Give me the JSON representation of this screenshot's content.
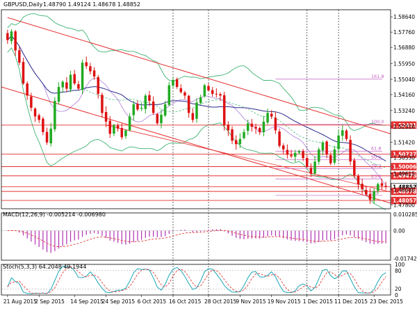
{
  "chart_data": {
    "type": "candlestick",
    "symbol_label": "GBPUSD,Daily",
    "ohlc_label": "1.48790 1.49124 1.48678 1.48852",
    "price_axis": {
      "range": [
        1.4758,
        1.5905
      ],
      "ticks": [
        "1.58640",
        "1.57760",
        "1.56880",
        "1.55950",
        "1.55040",
        "1.54160",
        "1.53240",
        "1.52310",
        "1.51420",
        "1.50530",
        "1.49615",
        "1.48680",
        "1.47800"
      ]
    },
    "x_ticks": [
      "21 Aug 2015",
      "2 Sep 2015",
      "14 Sep 2015",
      "24 Sep 2015",
      "6 Oct 2015",
      "16 Oct 2015",
      "28 Oct 2015",
      "9 Nov 2015",
      "19 Nov 2015",
      "1 Dec 2015",
      "11 Dec 2015",
      "23 Dec 2015"
    ],
    "x_tick_bars": [
      0,
      8,
      17,
      25,
      34,
      42,
      51,
      59,
      67,
      76,
      84,
      93
    ],
    "vertical_markers": [
      42,
      51,
      76,
      84
    ],
    "closes": [
      1.573,
      1.578,
      1.567,
      1.56,
      1.548,
      1.541,
      1.534,
      1.529,
      1.527,
      1.52,
      1.514,
      1.522,
      1.538,
      1.546,
      1.549,
      1.545,
      1.553,
      1.548,
      1.545,
      1.56,
      1.558,
      1.555,
      1.552,
      1.542,
      1.531,
      1.526,
      1.519,
      1.524,
      1.522,
      1.517,
      1.521,
      1.529,
      1.536,
      1.533,
      1.534,
      1.541,
      1.538,
      1.531,
      1.525,
      1.53,
      1.536,
      1.547,
      1.55,
      1.546,
      1.543,
      1.541,
      1.531,
      1.527,
      1.537,
      1.54,
      1.547,
      1.544,
      1.542,
      1.542,
      1.541,
      1.524,
      1.521,
      1.515,
      1.513,
      1.516,
      1.52,
      1.525,
      1.523,
      1.522,
      1.52,
      1.526,
      1.531,
      1.529,
      1.521,
      1.512,
      1.51,
      1.507,
      1.506,
      1.508,
      1.509,
      1.505,
      1.5,
      1.496,
      1.503,
      1.51,
      1.514,
      1.507,
      1.502,
      1.51,
      1.518,
      1.521,
      1.516,
      1.503,
      1.495,
      1.49,
      1.487,
      1.484,
      1.481,
      1.486,
      1.49,
      1.489,
      1.4885
    ],
    "annotations": {
      "fibonacci": [
        {
          "label": "161.8",
          "price": 1.5505
        },
        {
          "label": "100.0",
          "price": 1.5245
        },
        {
          "label": "61.8",
          "price": 1.509
        },
        {
          "label": "50.0",
          "price": 1.504
        },
        {
          "label": "38.2",
          "price": 1.499
        },
        {
          "label": "23.6",
          "price": 1.493
        },
        {
          "label": "0.0",
          "price": 1.4835
        }
      ],
      "price_levels": [
        {
          "label": "1.52401",
          "price": 1.52401
        },
        {
          "label": "1.50727",
          "price": 1.50727
        },
        {
          "label": "1.50006",
          "price": 1.50006
        },
        {
          "label": "1.49475",
          "price": 1.49475
        },
        {
          "label": "1.48852",
          "price": 1.48852
        },
        {
          "label": "1.48578",
          "price": 1.48578
        },
        {
          "label": "1.48057",
          "price": 1.48057
        }
      ]
    },
    "macd": {
      "label": "MACD(12,26,9) -0.005214 -0.006980",
      "range": [
        -0.0185,
        0.0112
      ],
      "ticks": [
        "0.010285",
        "0.00",
        "-0.017424"
      ]
    },
    "stoch": {
      "label": "Stoch(5,3,3) 64.2048 49.1944",
      "range": [
        0,
        100
      ],
      "ticks": [
        "100",
        "80",
        "20",
        "0"
      ]
    },
    "colors": {
      "bull": "#22aa22",
      "bear": "#dd1111",
      "channel": "#e53030",
      "bands": "#3cb371",
      "ma_slow": "#2a2a8c",
      "ma_fast": "#b58ae0",
      "grid": "#000000",
      "stoch_main": "#1aa6b7",
      "stoch_signal": "#e03c3c",
      "fib": "#c060c0"
    }
  }
}
